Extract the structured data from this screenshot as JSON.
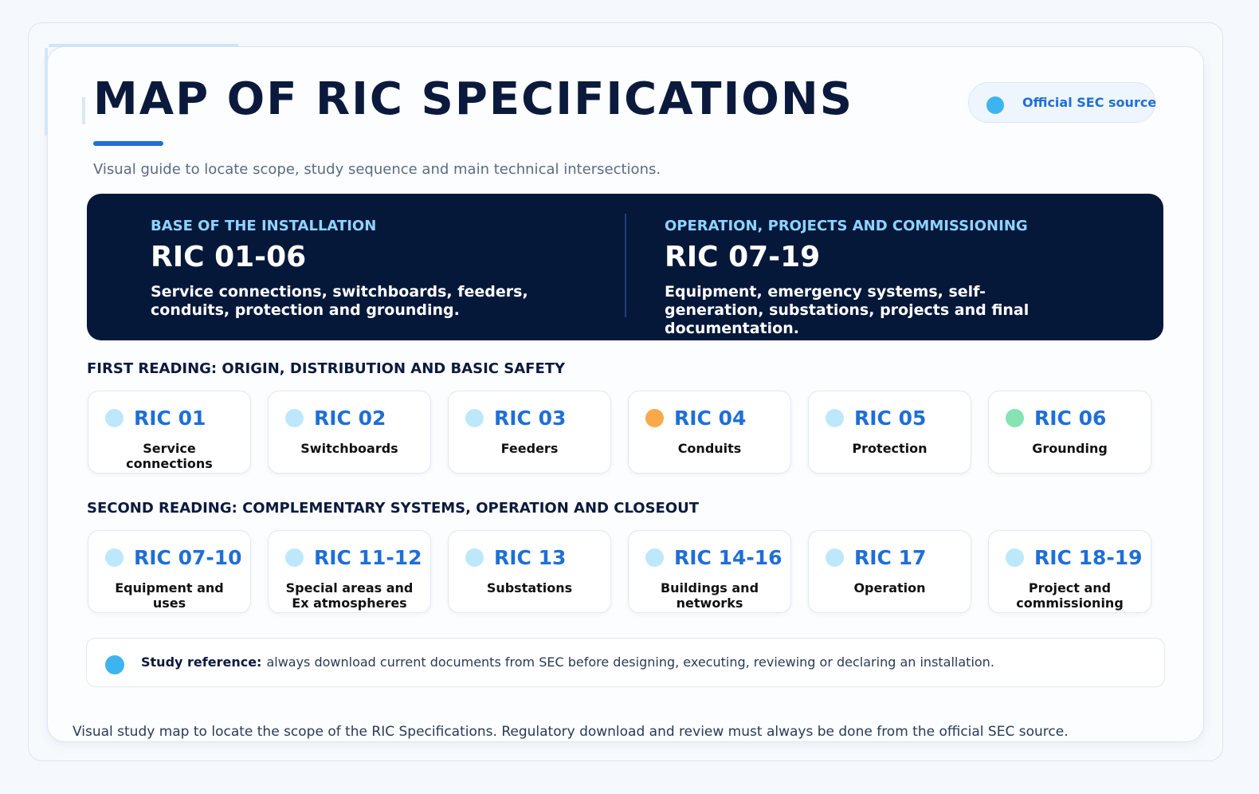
{
  "header": {
    "title": "MAP OF RIC SPECIFICATIONS",
    "subtitle": "Visual guide to locate scope, study sequence and main technical intersections.",
    "badge": "Official SEC source"
  },
  "banner": {
    "columns": [
      {
        "label": "BASE OF THE INSTALLATION",
        "code": "RIC 01-06",
        "text": "Service connections, switchboards, feeders, conduits, protection and grounding."
      },
      {
        "label": "OPERATION, PROJECTS AND COMMISSIONING",
        "code": "RIC 07-19",
        "text": "Equipment, emergency systems, self-generation, substations, projects and final documentation."
      }
    ]
  },
  "sections": [
    {
      "heading": "FIRST READING: ORIGIN, DISTRIBUTION AND BASIC SAFETY",
      "cards": [
        {
          "code": "RIC 01",
          "label": "Service connections",
          "dot": "#bde8fb"
        },
        {
          "code": "RIC 02",
          "label": "Switchboards",
          "dot": "#bde8fb"
        },
        {
          "code": "RIC 03",
          "label": "Feeders",
          "dot": "#bde8fb"
        },
        {
          "code": "RIC 04",
          "label": "Conduits",
          "dot": "#f9a94a"
        },
        {
          "code": "RIC 05",
          "label": "Protection",
          "dot": "#bde8fb"
        },
        {
          "code": "RIC 06",
          "label": "Grounding",
          "dot": "#86e3b4"
        }
      ]
    },
    {
      "heading": "SECOND READING: COMPLEMENTARY SYSTEMS, OPERATION AND CLOSEOUT",
      "cards": [
        {
          "code": "RIC 07-10",
          "label": "Equipment and uses",
          "dot": "#bde8fb"
        },
        {
          "code": "RIC 11-12",
          "label": "Special areas and Ex atmospheres",
          "dot": "#bde8fb"
        },
        {
          "code": "RIC 13",
          "label": "Substations",
          "dot": "#bde8fb"
        },
        {
          "code": "RIC 14-16",
          "label": "Buildings and networks",
          "dot": "#bde8fb"
        },
        {
          "code": "RIC 17",
          "label": "Operation",
          "dot": "#bde8fb"
        },
        {
          "code": "RIC 18-19",
          "label": "Project and commissioning",
          "dot": "#bde8fb"
        }
      ]
    }
  ],
  "note": {
    "label": "Study reference:",
    "text": "always download current documents from SEC before designing, executing, reviewing or declaring an installation."
  },
  "footer": "Visual study map to locate the scope of the RIC Specifications. Regulatory download and review must always be done from the official SEC source."
}
